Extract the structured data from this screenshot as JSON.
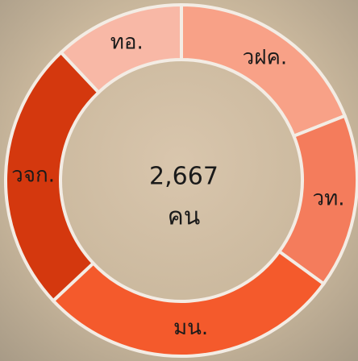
{
  "chart_data": {
    "type": "donut",
    "categories": [
      "วฝค.",
      "วท.",
      "มน.",
      "วจก.",
      "ทอ."
    ],
    "values": [
      19,
      16,
      28,
      25,
      12
    ],
    "colors": [
      "#f8a187",
      "#f47c5c",
      "#f45a2c",
      "#d4380e",
      "#f8b8a6"
    ],
    "center_value": {
      "value": 2667,
      "label": "2,667"
    },
    "center_unit": "คน"
  }
}
